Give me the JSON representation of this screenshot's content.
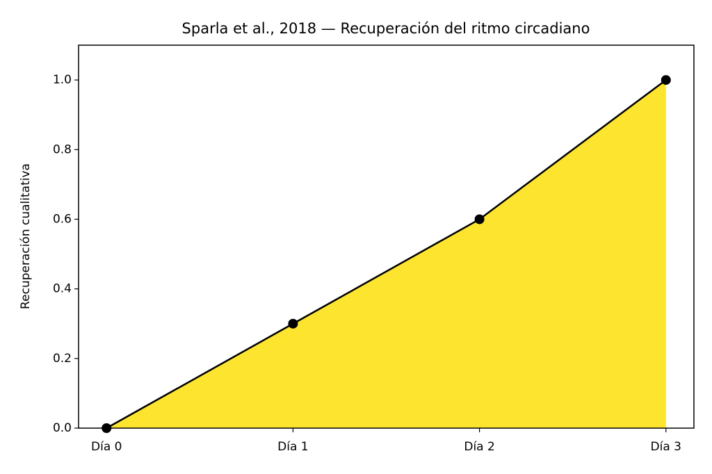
{
  "chart_data": {
    "type": "area",
    "title": "Sparla et al., 2018 — Recuperación del ritmo circadiano",
    "y_label": "Recuperación cualitativa",
    "categories": [
      "Día 0",
      "Día 1",
      "Día 2",
      "Día 3"
    ],
    "values": [
      0,
      0.3,
      0.6,
      1.0
    ],
    "color": "#fde52f",
    "line_color": "#000000",
    "marker_color": "#000000",
    "ylim": [
      0,
      1.1
    ],
    "yticks": [
      {
        "value": 0,
        "label": "0.0"
      },
      0.2,
      0.4,
      0.6,
      0.8,
      {
        "value": 1,
        "label": "1.0"
      }
    ],
    "grid": false
  }
}
